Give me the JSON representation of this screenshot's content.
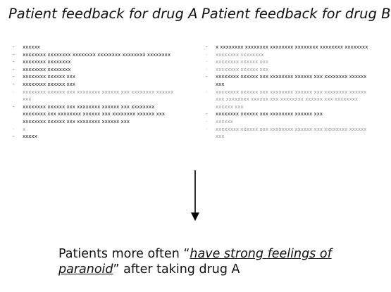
{
  "drug_a": {
    "heading": "Patient feedback for drug A",
    "items": [
      {
        "text": "xxxxxx",
        "faint": false
      },
      {
        "text": "xxxxxxxx xxxxxxxx xxxxxxxx xxxxxxxx xxxxxxxx xxxxxxxx",
        "faint": false
      },
      {
        "text": "xxxxxxxx xxxxxxxx",
        "faint": false
      },
      {
        "text": "xxxxxxxx xxxxxxxx",
        "faint": false
      },
      {
        "text": "xxxxxxxx xxxxxx xxx",
        "faint": false
      },
      {
        "text": "xxxxxxxx xxxxxx xxx",
        "faint": false
      },
      {
        "text": "xxxxxxxx xxxxxx xxx xxxxxxxx xxxxxx xxx xxxxxxxx xxxxxx xxx",
        "faint": true
      },
      {
        "text": "xxxxxxxx xxxxxx xxx xxxxxxxx xxxxxx xxx xxxxxxxx xxxxxxxx xxx xxxxxxxx xxxxxx xxx xxxxxxxx xxxxxx xxx xxxxxxxx xxxxxx xxx xxxxxxxx xxxxxx xxx",
        "faint": false
      },
      {
        "text": "x",
        "faint": true
      },
      {
        "text": "xxxxx",
        "faint": false
      }
    ]
  },
  "drug_b": {
    "heading": "Patient feedback for drug B",
    "items": [
      {
        "text": "x xxxxxxxx xxxxxxxx xxxxxxxx xxxxxxxx xxxxxxxx xxxxxxxx",
        "faint": false
      },
      {
        "text": "xxxxxxxx xxxxxxxx",
        "faint": true
      },
      {
        "text": "xxxxxxxx xxxxxx xxx",
        "faint": true
      },
      {
        "text": "xxxxxxxx xxxxxx xxx",
        "faint": true
      },
      {
        "text": "xxxxxxxx xxxxxx xxx xxxxxxxx xxxxxx xxx xxxxxxxx xxxxxx xxx",
        "faint": false
      },
      {
        "text": "xxxxxxxx xxxxxx xxx xxxxxxxx xxxxxx xxx xxxxxxxx xxxxxx xxx xxxxxxxx xxxxxx xxx xxxxxxxx xxxxxx xxx xxxxxxxx xxxxxx xxx",
        "faint": true
      },
      {
        "text": "xxxxxxxx xxxxxx xxx xxxxxxxx xxxxxx xxx",
        "faint": false
      },
      {
        "text": "xxxxxx",
        "faint": true
      },
      {
        "text": "xxxxxxxx xxxxxx xxx xxxxxxxx xxxxxx xxx xxxxxxxx xxxxxx xxx",
        "faint": true
      }
    ]
  },
  "conclusion": {
    "prefix": "Patients more often “",
    "emphasis": "have strong feelings of paranoid",
    "suffix": "” after taking drug A"
  },
  "colors": {
    "text": "#111111",
    "faint_text": "#9a9a9a",
    "arrow": "#000000"
  }
}
